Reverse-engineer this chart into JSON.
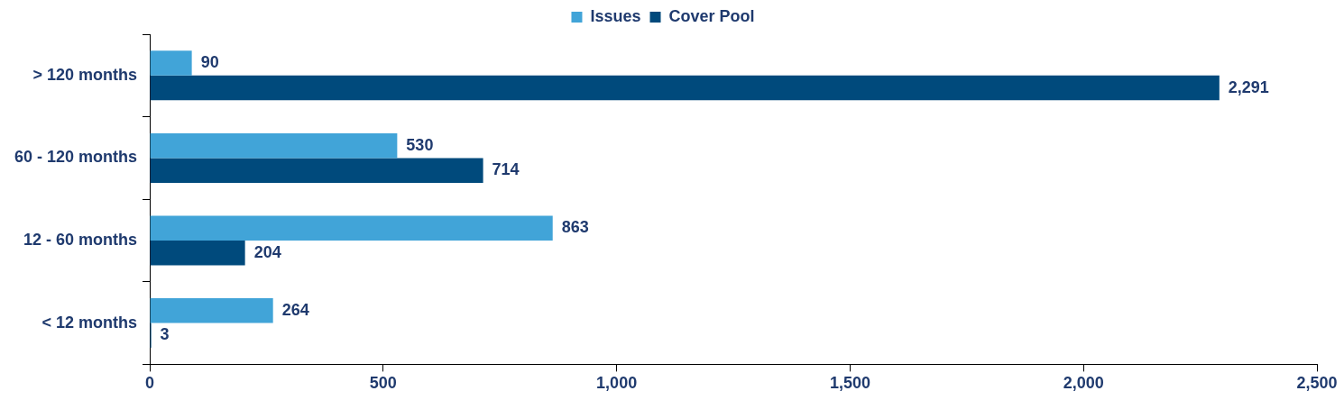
{
  "chart_data": {
    "type": "bar",
    "orientation": "horizontal",
    "categories": [
      "> 120 months",
      "60 - 120 months",
      "12 - 60 months",
      "< 12 months"
    ],
    "series": [
      {
        "name": "Issues",
        "color": "#41a4d8",
        "values": [
          90,
          530,
          863,
          264
        ],
        "value_labels": [
          "90",
          "530",
          "863",
          "264"
        ]
      },
      {
        "name": "Cover Pool",
        "color": "#004a7c",
        "values": [
          2291,
          714,
          204,
          3
        ],
        "value_labels": [
          "2,291",
          "714",
          "204",
          "3"
        ]
      }
    ],
    "xlim": [
      0,
      2500
    ],
    "xticks": [
      0,
      500,
      {
        "value": 1000,
        "label": "1,000"
      },
      {
        "value": 1500,
        "label": "1,500"
      },
      {
        "value": 2000,
        "label": "2,000"
      },
      {
        "value": 2500,
        "label": "2,500"
      }
    ],
    "grid": false,
    "legend": "top"
  }
}
